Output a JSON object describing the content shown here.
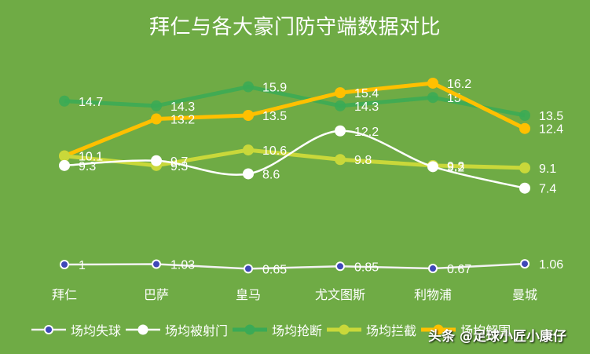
{
  "title": "拜仁与各大豪门防守端数据对比",
  "watermark": "头条 @足球小匠小康仔",
  "colors": {
    "background": "#6fab45",
    "goals_conceded": "#3f48b8",
    "shots_faced": "#ffffff",
    "tackles": "#3aaa56",
    "interceptions": "#c9d83a",
    "clearances": "#ffc000"
  },
  "legend": [
    {
      "label": "场均失球",
      "icon": "circle-marker-blue-icon"
    },
    {
      "label": "场均被射门",
      "icon": "circle-marker-white-icon"
    },
    {
      "label": "场均抢断",
      "icon": "circle-marker-green-icon"
    },
    {
      "label": "场均拦截",
      "icon": "circle-marker-yellowgreen-icon"
    },
    {
      "label": "场均解围",
      "icon": "circle-marker-orange-icon"
    }
  ],
  "chart_data": {
    "type": "line",
    "title": "拜仁与各大豪门防守端数据对比",
    "xlabel": "",
    "ylabel": "",
    "categories": [
      "拜仁",
      "巴萨",
      "皇马",
      "尤文图斯",
      "利物浦",
      "曼城"
    ],
    "grid": false,
    "legend_position": "bottom",
    "series": [
      {
        "name": "场均失球",
        "values": [
          1,
          1.03,
          0.65,
          0.85,
          0.67,
          1.06
        ],
        "color": "#3f48b8"
      },
      {
        "name": "场均被射门",
        "values": [
          9.3,
          9.7,
          8.6,
          12.2,
          9.2,
          7.4
        ],
        "color": "#ffffff",
        "smooth": true
      },
      {
        "name": "场均抢断",
        "values": [
          14.7,
          14.3,
          15.9,
          14.3,
          15,
          13.5
        ],
        "color": "#3aaa56"
      },
      {
        "name": "场均拦截",
        "values": [
          10.1,
          9.3,
          10.6,
          9.8,
          9.3,
          9.1
        ],
        "color": "#c9d83a"
      },
      {
        "name": "场均解围",
        "values": [
          10.1,
          13.2,
          13.5,
          15.4,
          16.2,
          12.4
        ],
        "color": "#ffc000"
      }
    ]
  }
}
